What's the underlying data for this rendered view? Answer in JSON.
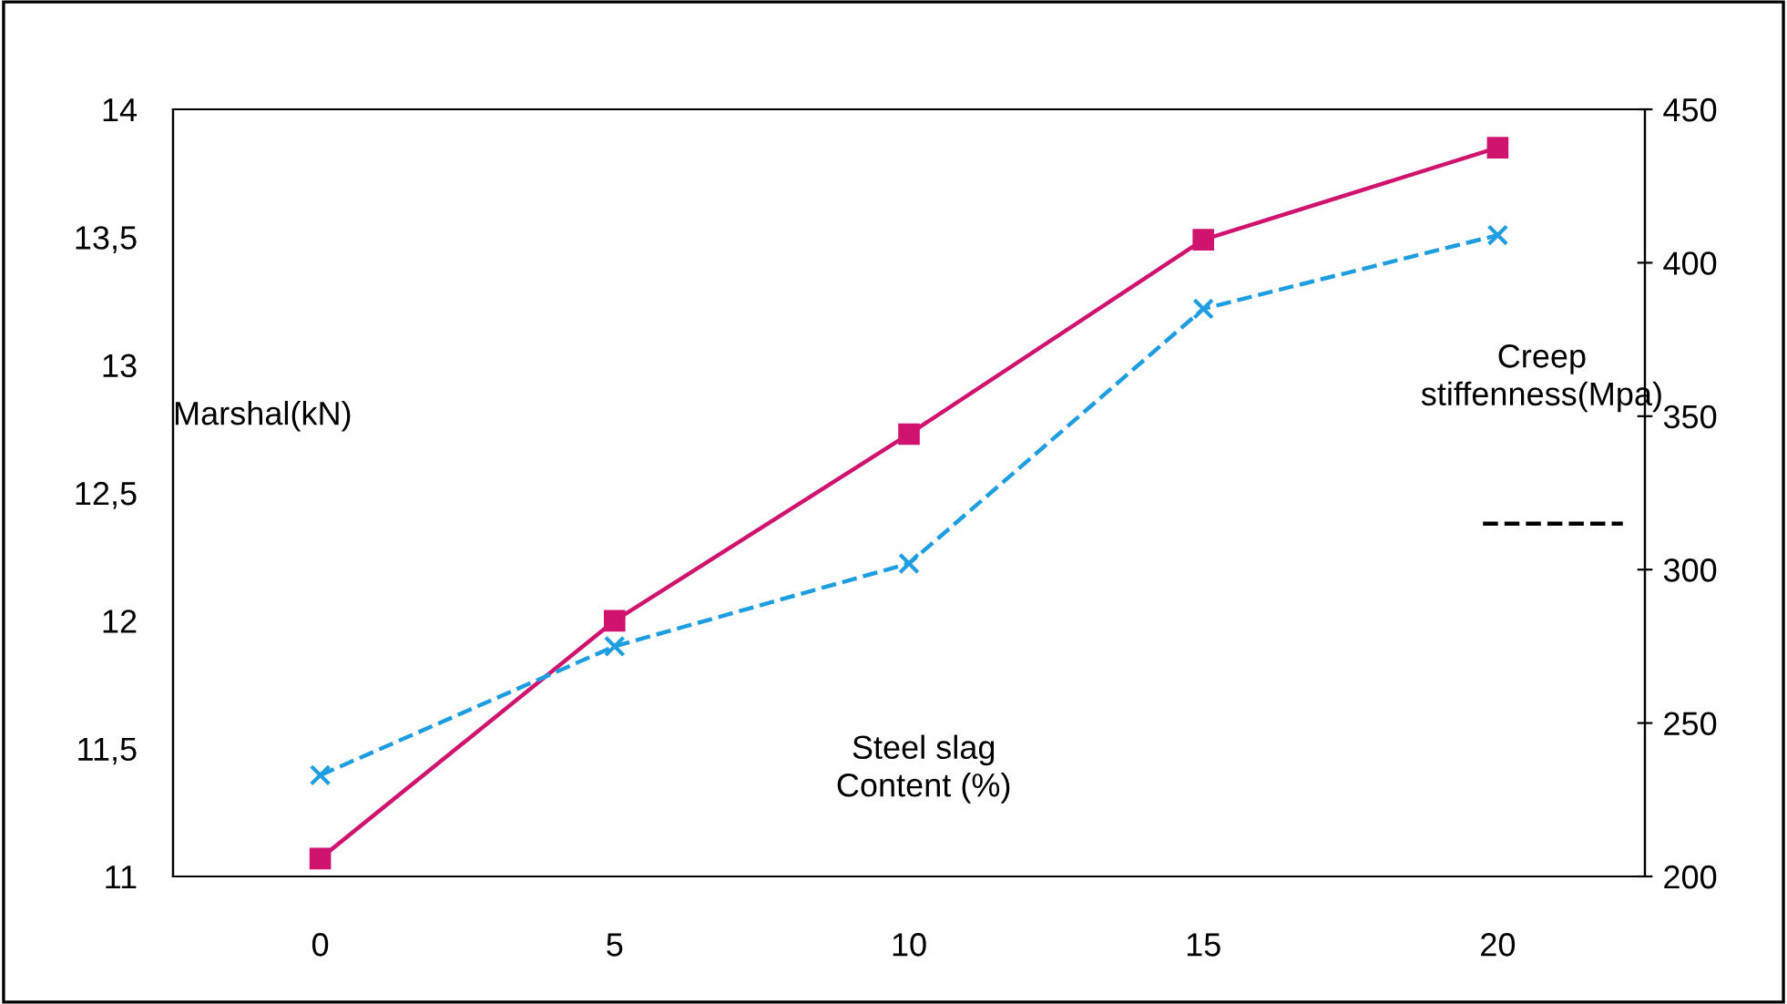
{
  "chart_data": {
    "type": "line",
    "categories": [
      "0",
      "5",
      "10",
      "15",
      "20"
    ],
    "xlabel": "Steel slag\nContent (%)",
    "ylabel": "Marshal(kN)",
    "y2label": "Creep\nstiffenness(Mpa)",
    "series": [
      {
        "color": "#d0136f",
        "values": [
          11.07,
          12.0,
          12.73,
          13.49,
          13.85
        ],
        "marker": "square",
        "line_style": "solid"
      },
      {
        "color": "#1e9ee0",
        "values": [
          233,
          275,
          302,
          385,
          409
        ],
        "axis": "y2",
        "marker": "cross",
        "line_style": "dashed"
      }
    ],
    "ylim": [
      11,
      14
    ],
    "yticks": [
      {
        "value": 11,
        "label": "11"
      },
      {
        "value": 11.5,
        "label": "11,5"
      },
      {
        "value": 12,
        "label": "12"
      },
      {
        "value": 12.5,
        "label": "12,5"
      },
      {
        "value": 13,
        "label": "13"
      },
      {
        "value": 13.5,
        "label": "13,5"
      },
      {
        "value": 14,
        "label": "14"
      }
    ],
    "y2lim": [
      200,
      450
    ],
    "y2ticks": [
      200,
      250,
      300,
      350,
      400,
      450
    ],
    "grid": false,
    "legend": false
  }
}
